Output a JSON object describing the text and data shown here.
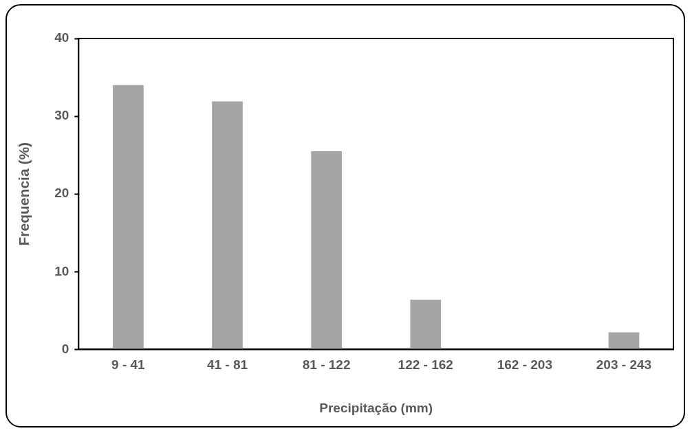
{
  "chart_data": {
    "type": "bar",
    "xlabel": "Precipitação (mm)",
    "ylabel": "Frequencia (%)",
    "categories": [
      "9 - 41",
      "41 - 81",
      "81 - 122",
      "122 - 162",
      "162 - 203",
      "203 - 243"
    ],
    "values": [
      34.0,
      31.9,
      25.5,
      6.4,
      0,
      2.2
    ],
    "color": "#a5a5a5",
    "ylim": [
      0,
      40
    ],
    "yticks": [
      0,
      10,
      20,
      30,
      40
    ],
    "grid": false,
    "legend": false
  }
}
